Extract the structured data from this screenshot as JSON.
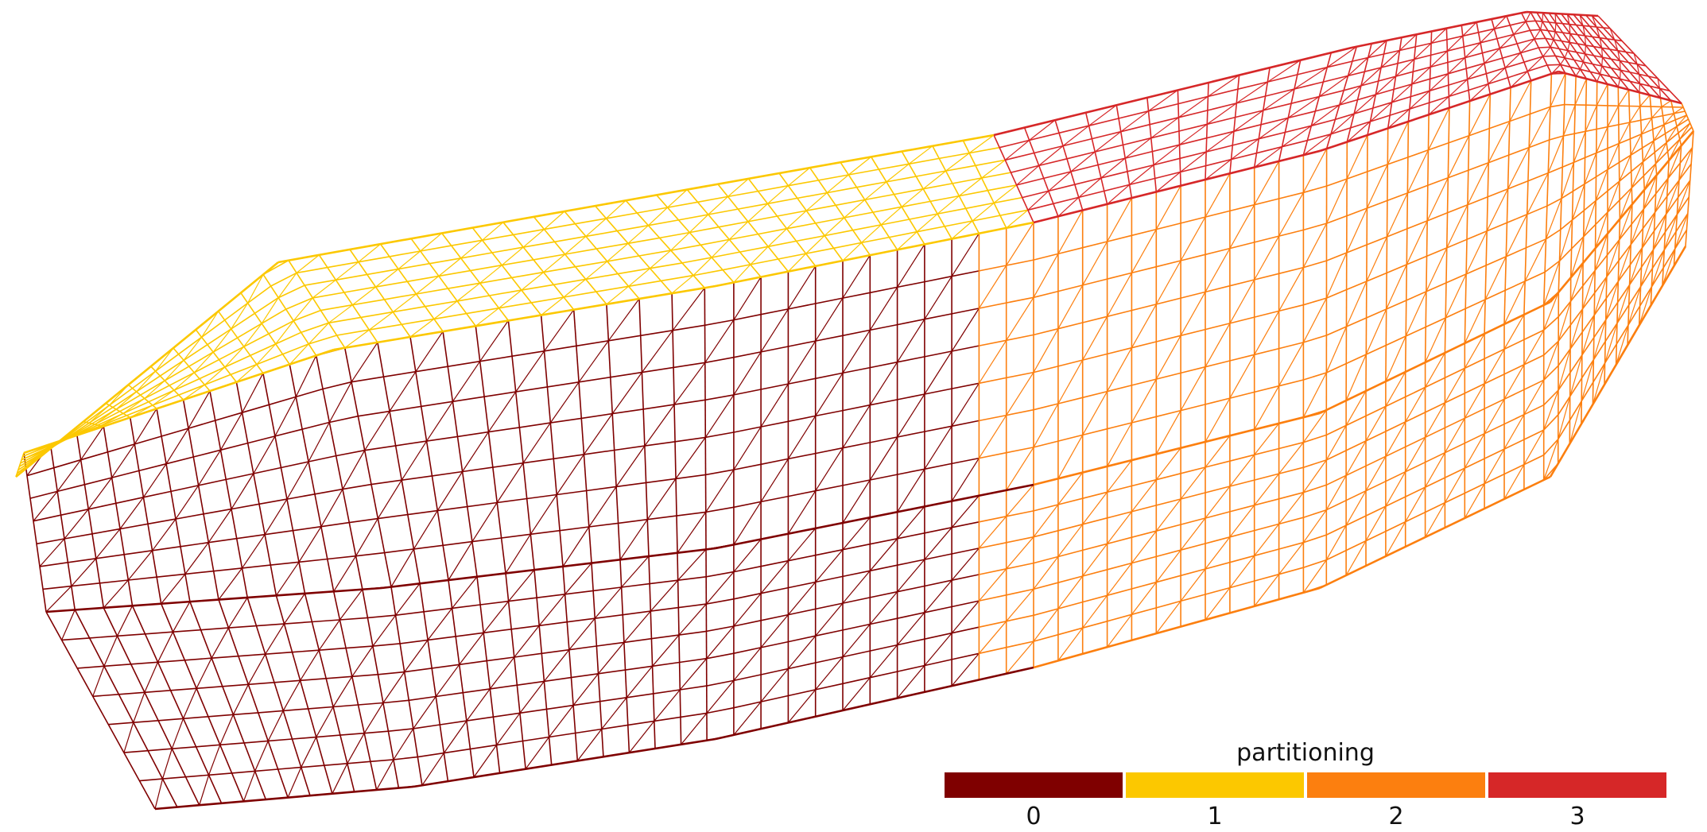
{
  "viewer": {
    "mesh_style": "wireframe",
    "background": "#ffffff"
  },
  "legend": {
    "title": "partitioning",
    "entries": [
      {
        "label": "0",
        "color": "#7f0000"
      },
      {
        "label": "1",
        "color": "#fcc800"
      },
      {
        "label": "2",
        "color": "#fc7f0f"
      },
      {
        "label": "3",
        "color": "#d62728"
      }
    ]
  }
}
